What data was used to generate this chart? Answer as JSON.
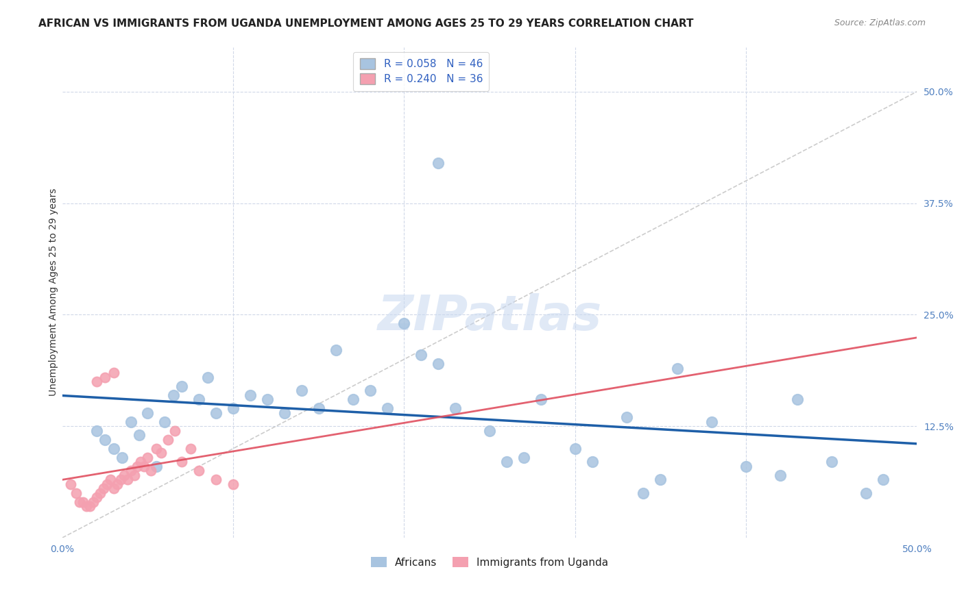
{
  "title": "AFRICAN VS IMMIGRANTS FROM UGANDA UNEMPLOYMENT AMONG AGES 25 TO 29 YEARS CORRELATION CHART",
  "source": "Source: ZipAtlas.com",
  "ylabel": "Unemployment Among Ages 25 to 29 years",
  "xlim": [
    0,
    0.5
  ],
  "ylim": [
    0,
    0.55
  ],
  "ytick_positions": [
    0.125,
    0.25,
    0.375,
    0.5
  ],
  "ytick_labels": [
    "12.5%",
    "25.0%",
    "37.5%",
    "50.0%"
  ],
  "legend_labels": [
    "R = 0.058   N = 46",
    "R = 0.240   N = 36"
  ],
  "africans_color": "#a8c4e0",
  "immigrants_color": "#f4a0b0",
  "africans_line_color": "#1e5fa8",
  "immigrants_line_color": "#e05060",
  "diagonal_color": "#c0c0c0",
  "africans_x": [
    0.02,
    0.025,
    0.03,
    0.035,
    0.04,
    0.045,
    0.05,
    0.055,
    0.06,
    0.065,
    0.07,
    0.08,
    0.085,
    0.09,
    0.1,
    0.11,
    0.12,
    0.13,
    0.14,
    0.15,
    0.16,
    0.17,
    0.18,
    0.19,
    0.2,
    0.21,
    0.22,
    0.23,
    0.25,
    0.26,
    0.27,
    0.28,
    0.3,
    0.31,
    0.33,
    0.34,
    0.35,
    0.36,
    0.38,
    0.4,
    0.42,
    0.43,
    0.45,
    0.47,
    0.48,
    0.22
  ],
  "africans_y": [
    0.12,
    0.11,
    0.1,
    0.09,
    0.13,
    0.115,
    0.14,
    0.08,
    0.13,
    0.16,
    0.17,
    0.155,
    0.18,
    0.14,
    0.145,
    0.16,
    0.155,
    0.14,
    0.165,
    0.145,
    0.21,
    0.155,
    0.165,
    0.145,
    0.24,
    0.205,
    0.195,
    0.145,
    0.12,
    0.085,
    0.09,
    0.155,
    0.1,
    0.085,
    0.135,
    0.05,
    0.065,
    0.19,
    0.13,
    0.08,
    0.07,
    0.155,
    0.085,
    0.05,
    0.065,
    0.42
  ],
  "immigrants_x": [
    0.005,
    0.008,
    0.01,
    0.012,
    0.014,
    0.016,
    0.018,
    0.02,
    0.022,
    0.024,
    0.026,
    0.028,
    0.03,
    0.032,
    0.034,
    0.036,
    0.038,
    0.04,
    0.042,
    0.044,
    0.046,
    0.048,
    0.05,
    0.052,
    0.055,
    0.058,
    0.062,
    0.066,
    0.07,
    0.075,
    0.08,
    0.09,
    0.1,
    0.02,
    0.025,
    0.03
  ],
  "immigrants_y": [
    0.06,
    0.05,
    0.04,
    0.04,
    0.035,
    0.035,
    0.04,
    0.045,
    0.05,
    0.055,
    0.06,
    0.065,
    0.055,
    0.06,
    0.065,
    0.07,
    0.065,
    0.075,
    0.07,
    0.08,
    0.085,
    0.08,
    0.09,
    0.075,
    0.1,
    0.095,
    0.11,
    0.12,
    0.085,
    0.1,
    0.075,
    0.065,
    0.06,
    0.175,
    0.18,
    0.185
  ],
  "watermark": "ZIPatlas",
  "background_color": "#ffffff",
  "grid_color": "#d0d8e8",
  "title_fontsize": 11,
  "axis_label_fontsize": 10,
  "tick_fontsize": 10,
  "legend_fontsize": 11
}
